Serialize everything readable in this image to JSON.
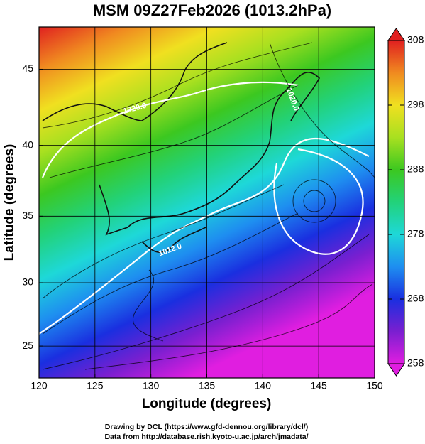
{
  "chart_data": {
    "type": "map",
    "title": "MSM 09Z27Feb2026 (1013.2hPa)",
    "x_label": "Longitude (degrees)",
    "y_label": "Latitude  (degrees)",
    "xlim": [
      120,
      150
    ],
    "ylim": [
      22.4,
      47.6
    ],
    "y_scale": "mercator",
    "xticks": [
      120,
      125,
      130,
      135,
      140,
      145,
      150
    ],
    "yticks": [
      25,
      30,
      35,
      40,
      45
    ],
    "grid": true,
    "annotations": [
      "1020.0",
      "1020.0",
      "1012.0"
    ],
    "colorbar": {
      "lim": [
        258,
        308
      ],
      "ticks": [
        258,
        268,
        278,
        288,
        298,
        308
      ],
      "colors": [
        "#e01ee0",
        "#7a1fd0",
        "#1a2fe0",
        "#1e8ef0",
        "#1ed8d8",
        "#22d27a",
        "#3cc820",
        "#a8e020",
        "#f0e020",
        "#f08a20",
        "#e02020"
      ]
    },
    "footer": [
      "Drawing by DCL (https://www.gfd-dennou.org/library/dcl/)",
      "Data from http://database.rish.kyoto-u.ac.jp/arch/jmadata/"
    ]
  }
}
